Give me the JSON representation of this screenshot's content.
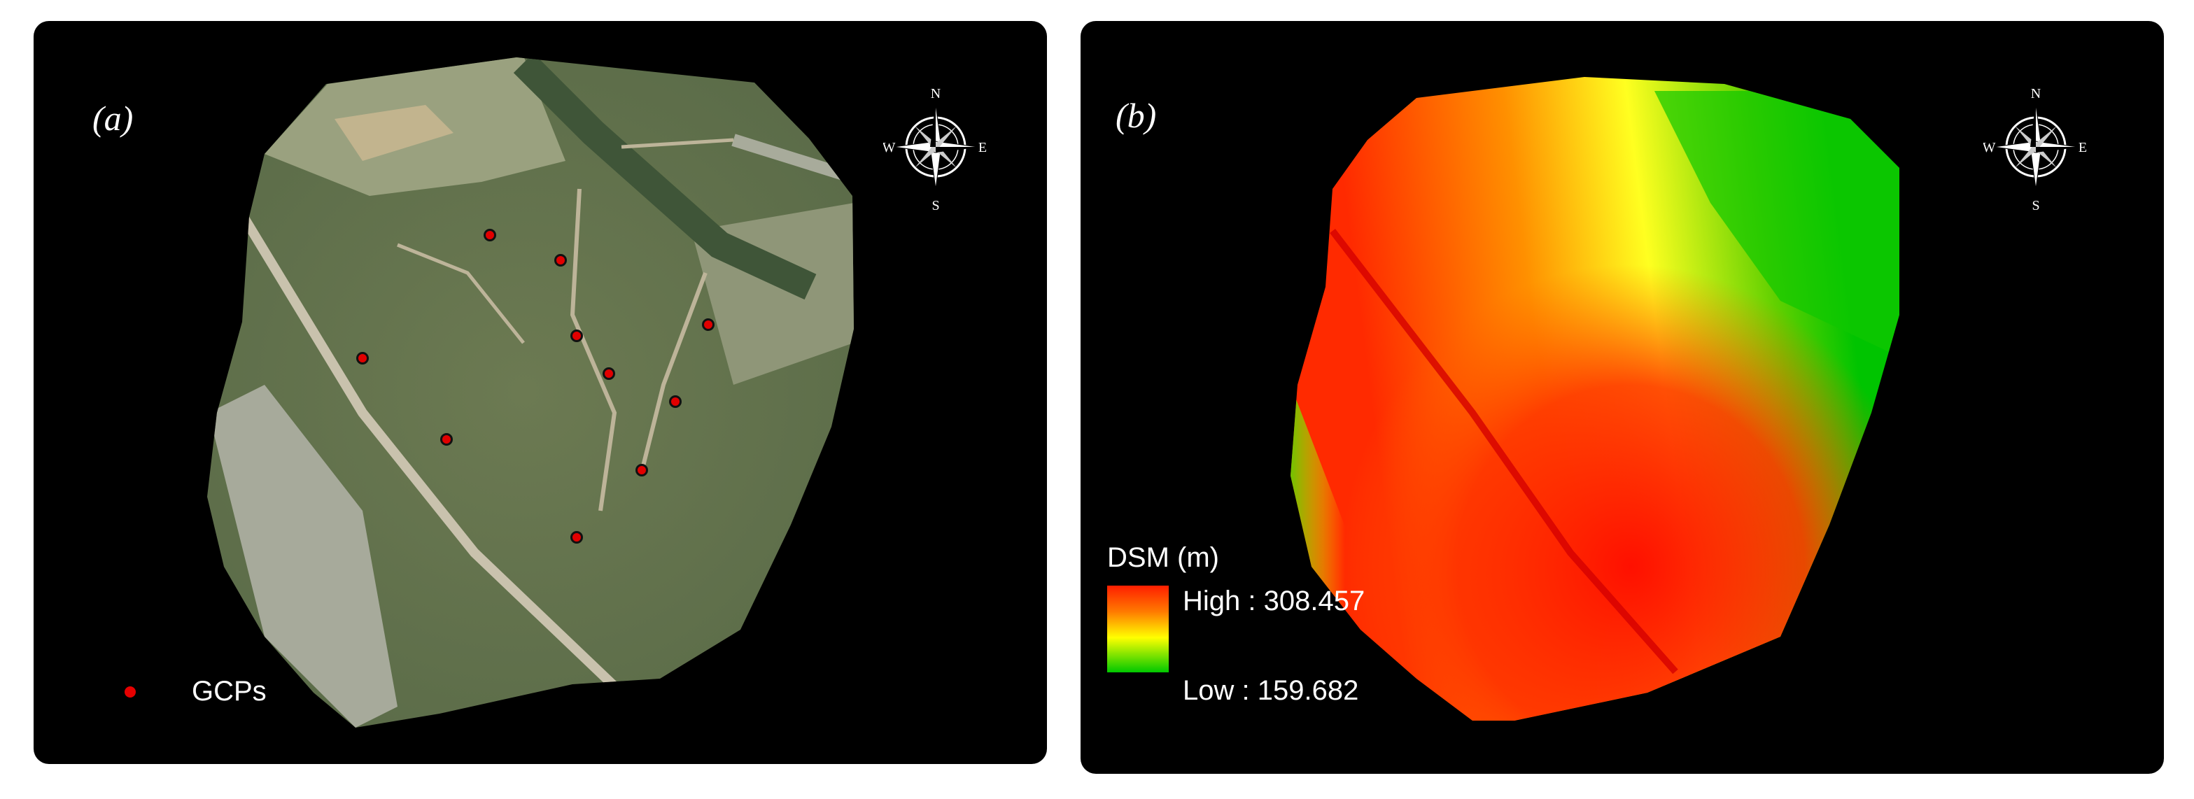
{
  "panel_a": {
    "label": "(a)",
    "legend_label": "GCPs",
    "compass": {
      "n": "N",
      "s": "S",
      "e": "E",
      "w": "W"
    },
    "gcp_color": "#e10000",
    "gcp_count": 10
  },
  "panel_b": {
    "label": "(b)",
    "legend_title": "DSM (m)",
    "legend_high": "High : 308.457",
    "legend_low": "Low : 159.682",
    "compass": {
      "n": "N",
      "s": "S",
      "e": "E",
      "w": "W"
    },
    "colors": {
      "high": "#ff1e00",
      "mid": "#ffff00",
      "low": "#00c800"
    }
  }
}
